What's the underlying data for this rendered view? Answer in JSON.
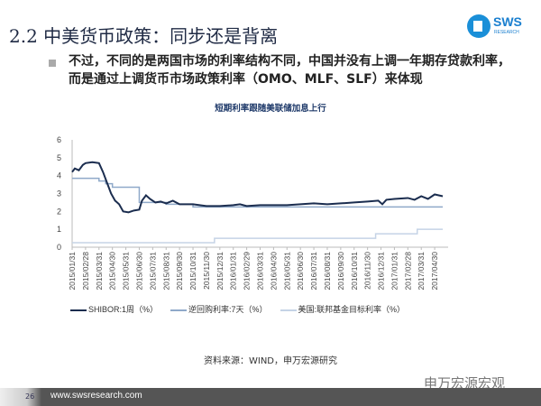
{
  "header": {
    "title": "2.2 中美货币政策：同步还是背离",
    "logo_text": "SWS",
    "logo_sub": "RESEARCH"
  },
  "body_text": "不过，不同的是两国市场的利率结构不同，中国并没有上调一年期存贷款利率，而是通过上调货币市场政策利率（OMO、MLF、SLF）来体现",
  "chart_data": {
    "type": "line",
    "title": "短期利率跟随美联储加息上行",
    "ylim": [
      0,
      6
    ],
    "yticks": [
      0,
      1,
      2,
      3,
      4,
      5,
      6
    ],
    "xlim": [
      0,
      28
    ],
    "xticklabels": [
      "2015/01/31",
      "2015/02/28",
      "2015/03/31",
      "2015/04/30",
      "2015/05/31",
      "2015/06/30",
      "2015/07/31",
      "2015/08/31",
      "2015/09/30",
      "2015/10/31",
      "2015/11/30",
      "2015/12/31",
      "2016/01/31",
      "2016/02/29",
      "2016/03/31",
      "2016/04/30",
      "2016/05/31",
      "2016/06/30",
      "2016/07/31",
      "2016/08/31",
      "2016/09/30",
      "2016/10/31",
      "2016/11/30",
      "2016/12/31",
      "2017/01/31",
      "2017/02/28",
      "2017/03/31",
      "2017/04/30"
    ],
    "legend_position": "bottom",
    "series": [
      {
        "name": "SHIBOR:1周（%）",
        "color": "#1b2d4f",
        "width": 2,
        "x": [
          0,
          0.2,
          0.5,
          0.8,
          1,
          1.5,
          2,
          2.3,
          2.6,
          2.9,
          3.2,
          3.5,
          3.8,
          4.2,
          4.6,
          5,
          5.2,
          5.5,
          5.8,
          6.2,
          6.6,
          7,
          7.5,
          8,
          9,
          10,
          11,
          12,
          12.5,
          13,
          14,
          15,
          16,
          17,
          18,
          19,
          20,
          21,
          22,
          22.8,
          23.1,
          23.4,
          24,
          25,
          25.5,
          26,
          26.5,
          27,
          27.6
        ],
        "y": [
          4.2,
          4.4,
          4.3,
          4.6,
          4.7,
          4.75,
          4.7,
          4.2,
          3.6,
          3.0,
          2.6,
          2.4,
          2.0,
          1.95,
          2.05,
          2.1,
          2.6,
          2.9,
          2.7,
          2.5,
          2.55,
          2.45,
          2.6,
          2.4,
          2.4,
          2.3,
          2.3,
          2.35,
          2.4,
          2.3,
          2.35,
          2.35,
          2.35,
          2.4,
          2.45,
          2.4,
          2.45,
          2.5,
          2.55,
          2.6,
          2.4,
          2.65,
          2.7,
          2.75,
          2.65,
          2.85,
          2.7,
          2.95,
          2.85
        ]
      },
      {
        "name": "逆回购利率:7天（%）",
        "color": "#8fa9c9",
        "width": 1.5,
        "step": true,
        "x": [
          0,
          1,
          2,
          2.5,
          3,
          4.9,
          5,
          7,
          9,
          27.6
        ],
        "y": [
          3.85,
          3.85,
          3.7,
          3.55,
          3.35,
          3.35,
          2.5,
          2.4,
          2.25,
          2.25
        ]
      },
      {
        "name": "美国:联邦基金目标利率（%）",
        "color": "#c5d3e6",
        "width": 1.5,
        "step": true,
        "x": [
          0,
          10.6,
          22.6,
          25.7,
          27.6
        ],
        "y": [
          0.25,
          0.5,
          0.75,
          1.0,
          1.0
        ]
      }
    ]
  },
  "source": "资料来源：WIND，申万宏源研究",
  "watermark": "申万宏源宏观",
  "footer": {
    "page": "26",
    "url": "www.swsresearch.com"
  }
}
